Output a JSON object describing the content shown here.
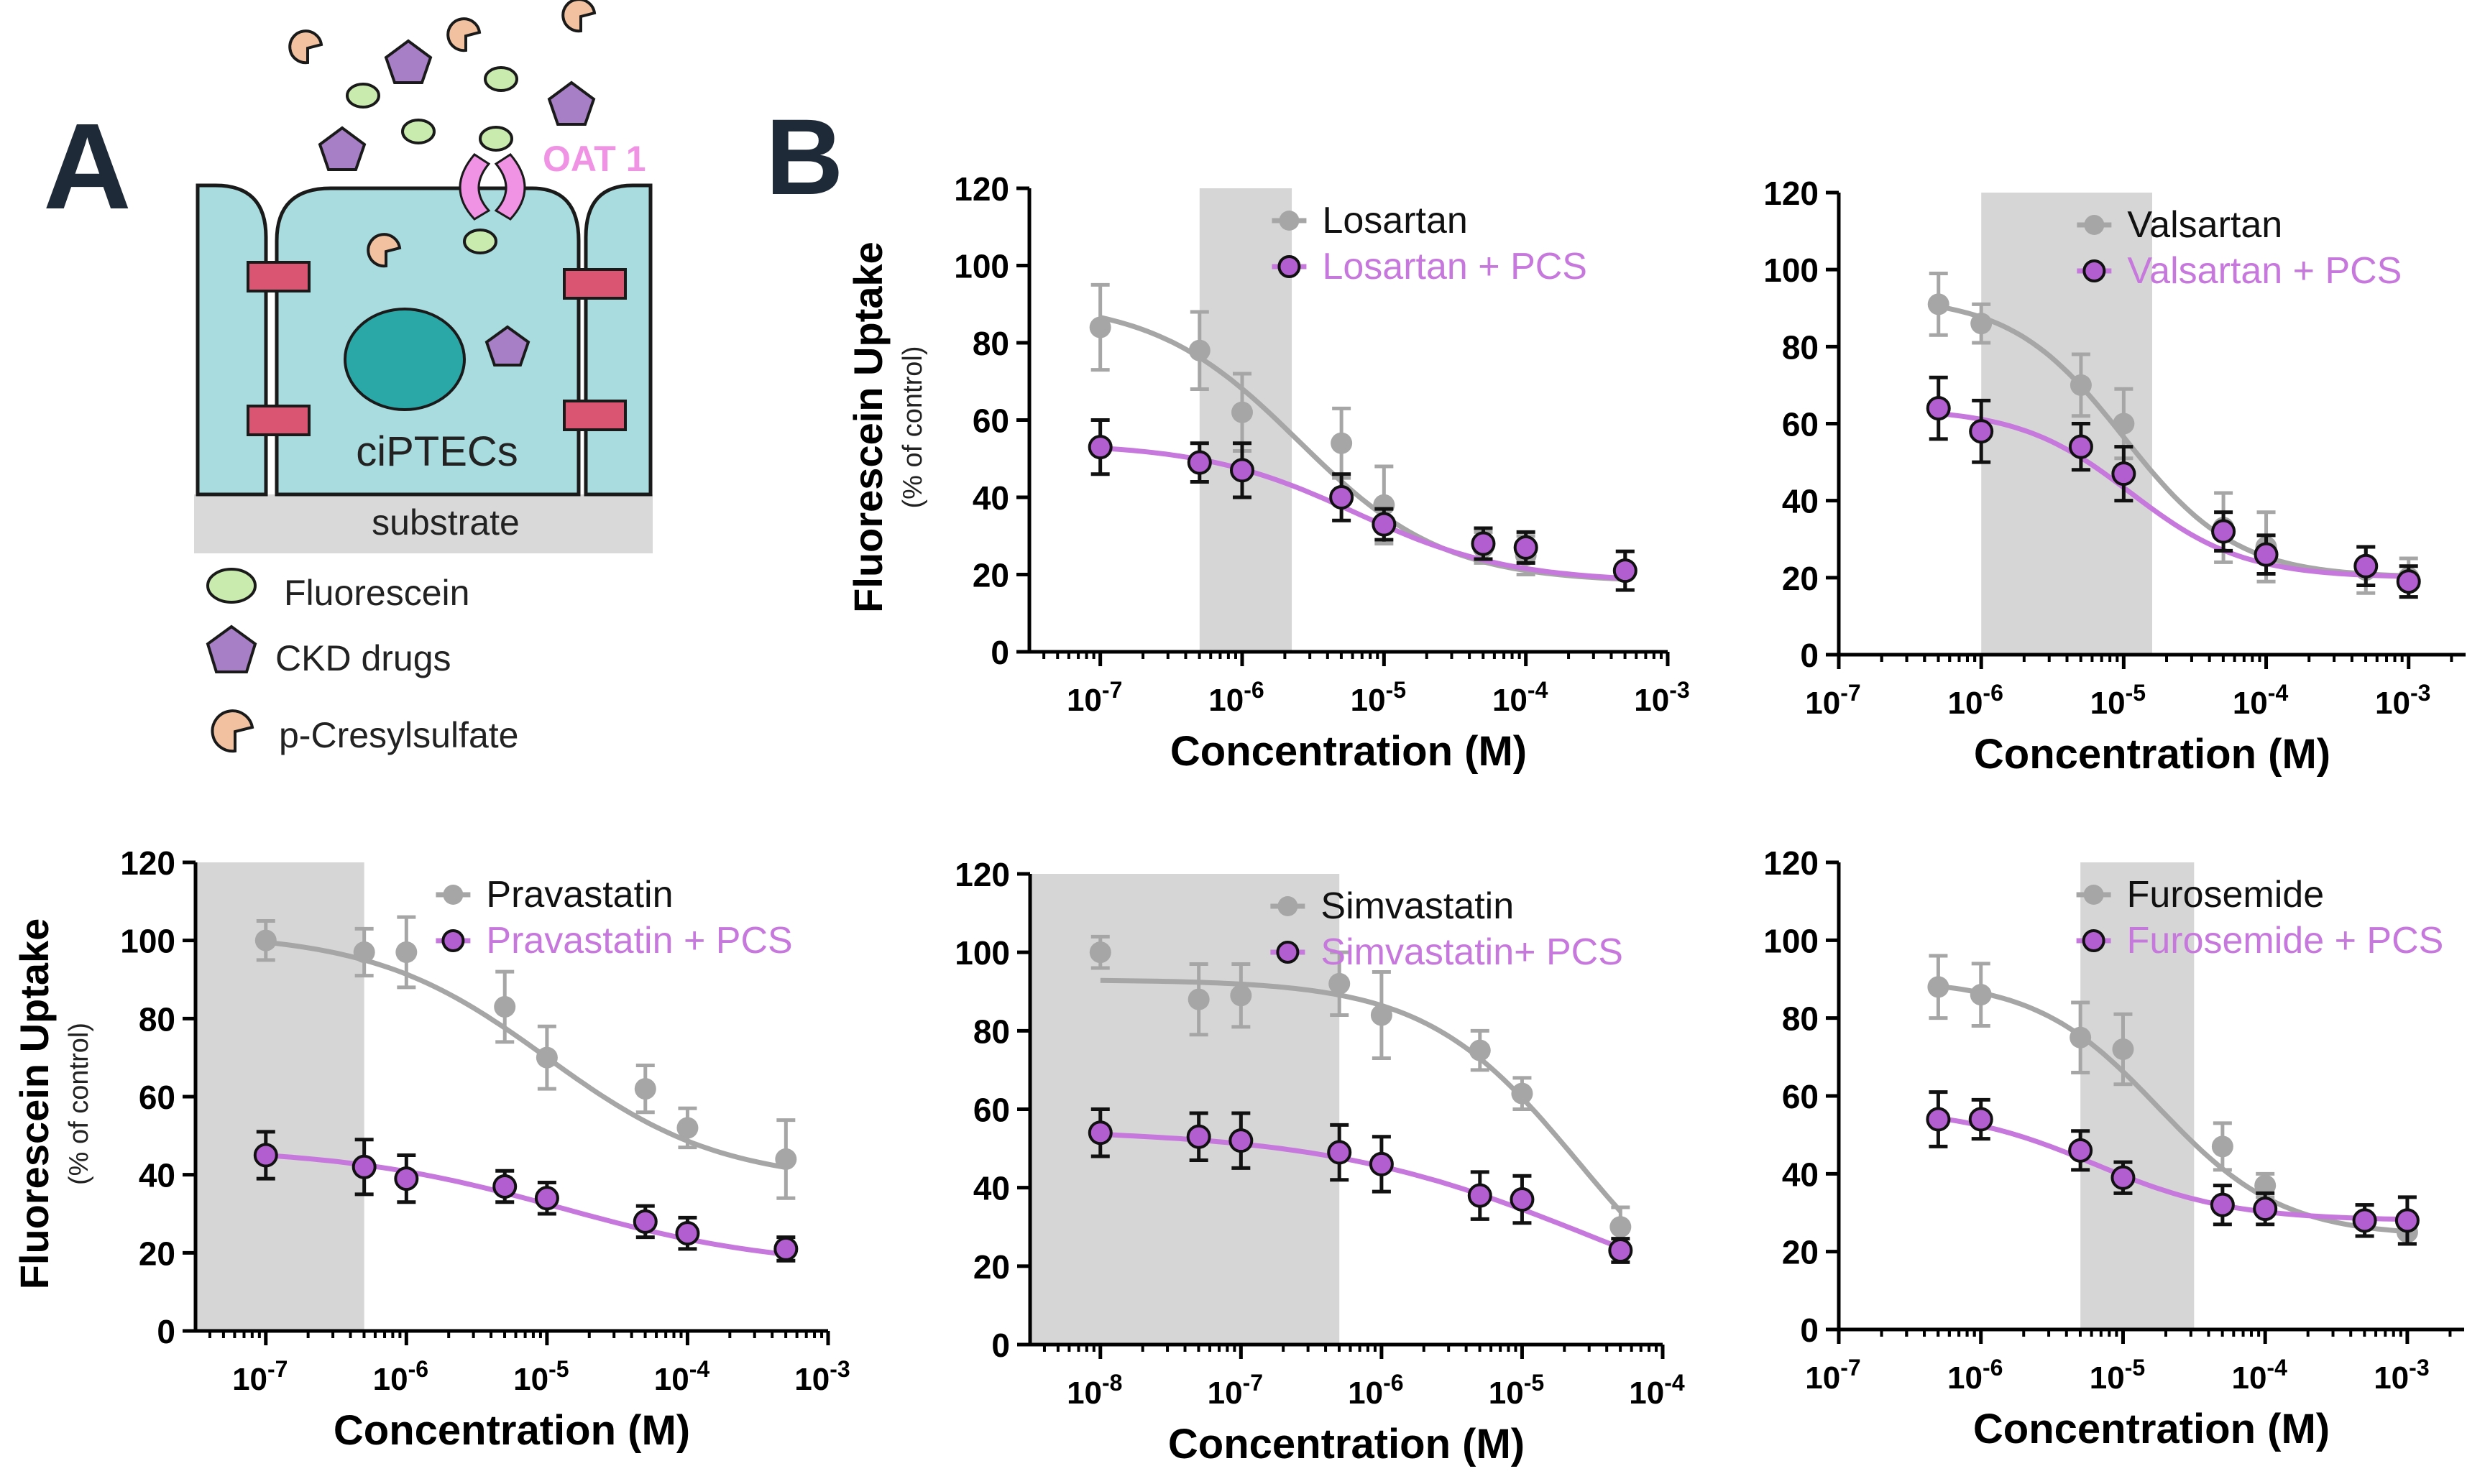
{
  "panel_a": {
    "label": "A",
    "oat_label": "OAT 1",
    "cell_label": "ciPTECs",
    "substrate_label": "substrate",
    "legend": [
      {
        "icon": "fluorescein-icon",
        "label": "Fluorescein"
      },
      {
        "icon": "ckd-drug-icon",
        "label": "CKD drugs"
      },
      {
        "icon": "p-cresylsulfate-icon",
        "label": "p-Cresylsulfate"
      }
    ]
  },
  "panel_b": {
    "label": "B"
  },
  "colors": {
    "gray": "#a6a6a6",
    "purple": "#c778dd",
    "purple_fill": "#b25ed0",
    "shade": "#d6d6d6",
    "cell": "#a9dcdf",
    "nucleus": "#2aa7a7",
    "junction": "#d95571",
    "oat": "#f093e4",
    "fluorescein": "#c9ecae",
    "drug": "#a77fc6",
    "pcs": "#f2c2a0"
  },
  "chart_data": [
    {
      "type": "line",
      "title": "Losartan",
      "xlabel": "Concentration (M)",
      "ylabel": "Fluorescein Uptake",
      "ylabel_sub": "(% of control)",
      "x_scale": "log",
      "xlim_exp": [
        -7.5,
        -3
      ],
      "x_ticks_exp": [
        -7,
        -6,
        -5,
        -4,
        -3
      ],
      "ylim": [
        0,
        120
      ],
      "y_ticks": [
        0,
        20,
        40,
        60,
        80,
        100,
        120
      ],
      "shade_exp": [
        -6.3,
        -5.65
      ],
      "legend": [
        "Losartan",
        "Losartan + PCS"
      ],
      "series": [
        {
          "name": "Losartan",
          "color": "gray",
          "x_exp": [
            -7,
            -6.3,
            -6,
            -5.3,
            -5,
            -4.3,
            -4,
            -3.3
          ],
          "y": [
            84,
            78,
            62,
            54,
            38,
            27,
            25,
            21
          ],
          "err": [
            11,
            10,
            10,
            9,
            10,
            4,
            5,
            5
          ],
          "curve": {
            "top": 91,
            "bottom": 18,
            "logec50": -5.6,
            "hill": 0.85
          }
        },
        {
          "name": "Losartan + PCS",
          "color": "purple",
          "x_exp": [
            -7,
            -6.3,
            -6,
            -5.3,
            -5,
            -4.3,
            -4,
            -3.3
          ],
          "y": [
            53,
            49,
            47,
            40,
            33,
            28,
            27,
            21
          ],
          "err": [
            7,
            5,
            7,
            6,
            4,
            4,
            4,
            5
          ],
          "curve": {
            "top": 54,
            "bottom": 18,
            "logec50": -5.2,
            "hill": 0.8
          }
        }
      ]
    },
    {
      "type": "line",
      "title": "Valsartan",
      "xlabel": "Concentration (M)",
      "ylabel": "",
      "ylabel_sub": "",
      "x_scale": "log",
      "xlim_exp": [
        -7,
        -2.6
      ],
      "x_ticks_exp": [
        -7,
        -6,
        -5,
        -4,
        -3
      ],
      "ylim": [
        0,
        120
      ],
      "y_ticks": [
        0,
        20,
        40,
        60,
        80,
        100,
        120
      ],
      "shade_exp": [
        -6,
        -4.8
      ],
      "legend": [
        "Valsartan",
        "Valsartan + PCS"
      ],
      "series": [
        {
          "name": "Valsartan",
          "color": "gray",
          "x_exp": [
            -6.3,
            -6,
            -5.3,
            -5,
            -4.3,
            -4,
            -3.3,
            -3
          ],
          "y": [
            91,
            86,
            70,
            60,
            33,
            28,
            22,
            20
          ],
          "err": [
            8,
            5,
            8,
            9,
            9,
            9,
            6,
            5
          ],
          "curve": {
            "top": 93,
            "bottom": 20,
            "logec50": -5.0,
            "hill": 1.1
          }
        },
        {
          "name": "Valsartan + PCS",
          "color": "purple",
          "x_exp": [
            -6.3,
            -6,
            -5.3,
            -5,
            -4.3,
            -4,
            -3.3,
            -3
          ],
          "y": [
            64,
            58,
            54,
            47,
            32,
            26,
            23,
            19
          ],
          "err": [
            8,
            8,
            6,
            7,
            5,
            5,
            5,
            4
          ],
          "curve": {
            "top": 64,
            "bottom": 20,
            "logec50": -4.95,
            "hill": 1.1
          }
        }
      ]
    },
    {
      "type": "line",
      "title": "Pravastatin",
      "xlabel": "Concentration (M)",
      "ylabel": "Fluorescein Uptake",
      "ylabel_sub": "(% of control)",
      "x_scale": "log",
      "xlim_exp": [
        -7.5,
        -3
      ],
      "x_ticks_exp": [
        -7,
        -6,
        -5,
        -4,
        -3
      ],
      "ylim": [
        0,
        120
      ],
      "y_ticks": [
        0,
        20,
        40,
        60,
        80,
        100,
        120
      ],
      "shade_exp": [
        -7.5,
        -6.3
      ],
      "legend": [
        "Pravastatin",
        "Pravastatin + PCS"
      ],
      "series": [
        {
          "name": "Pravastatin",
          "color": "gray",
          "x_exp": [
            -7,
            -6.3,
            -6,
            -5.3,
            -5,
            -4.3,
            -4,
            -3.3
          ],
          "y": [
            100,
            97,
            97,
            83,
            70,
            62,
            52,
            44
          ],
          "err": [
            5,
            6,
            9,
            9,
            8,
            6,
            5,
            10
          ],
          "curve": {
            "top": 102,
            "bottom": 38,
            "logec50": -5.0,
            "hill": 0.7
          }
        },
        {
          "name": "Pravastatin + PCS",
          "color": "purple",
          "x_exp": [
            -7,
            -6.3,
            -6,
            -5.3,
            -5,
            -4.3,
            -4,
            -3.3
          ],
          "y": [
            45,
            42,
            39,
            37,
            34,
            28,
            25,
            21
          ],
          "err": [
            6,
            7,
            6,
            4,
            4,
            4,
            4,
            3
          ],
          "curve": {
            "top": 47,
            "bottom": 16,
            "logec50": -4.9,
            "hill": 0.55
          }
        }
      ]
    },
    {
      "type": "line",
      "title": "Simvastatin",
      "xlabel": "Concentration (M)",
      "ylabel": "",
      "ylabel_sub": "",
      "x_scale": "log",
      "xlim_exp": [
        -8.5,
        -4
      ],
      "x_ticks_exp": [
        -8,
        -7,
        -6,
        -5,
        -4
      ],
      "ylim": [
        0,
        120
      ],
      "y_ticks": [
        0,
        20,
        40,
        60,
        80,
        100,
        120
      ],
      "shade_exp": [
        -8.5,
        -6.3
      ],
      "legend": [
        "Simvastatin",
        "Simvastatin+ PCS"
      ],
      "series": [
        {
          "name": "Simvastatin",
          "color": "gray",
          "x_exp": [
            -8,
            -7.3,
            -7,
            -6.3,
            -6,
            -5.3,
            -5,
            -4.3
          ],
          "y": [
            100,
            88,
            89,
            92,
            84,
            75,
            64,
            30
          ],
          "err": [
            4,
            9,
            8,
            8,
            11,
            5,
            4,
            5
          ],
          "curve": {
            "top": 93,
            "bottom": 0,
            "logec50": -4.6,
            "hill": 0.8
          }
        },
        {
          "name": "Simvastatin+ PCS",
          "color": "purple",
          "x_exp": [
            -8,
            -7.3,
            -7,
            -6.3,
            -6,
            -5.3,
            -5,
            -4.3
          ],
          "y": [
            54,
            53,
            52,
            49,
            46,
            38,
            37,
            24
          ],
          "err": [
            6,
            6,
            7,
            7,
            7,
            6,
            6,
            3
          ],
          "curve": {
            "top": 55,
            "bottom": 0,
            "logec50": -4.5,
            "hill": 0.45
          }
        }
      ]
    },
    {
      "type": "line",
      "title": "Furosemide",
      "xlabel": "Concentration (M)",
      "ylabel": "",
      "ylabel_sub": "",
      "x_scale": "log",
      "xlim_exp": [
        -7,
        -2.6
      ],
      "x_ticks_exp": [
        -7,
        -6,
        -5,
        -4,
        -3
      ],
      "ylim": [
        0,
        120
      ],
      "y_ticks": [
        0,
        20,
        40,
        60,
        80,
        100,
        120
      ],
      "shade_exp": [
        -5.3,
        -4.5
      ],
      "legend": [
        "Furosemide",
        "Furosemide + PCS"
      ],
      "series": [
        {
          "name": "Furosemide",
          "color": "gray",
          "x_exp": [
            -6.3,
            -6,
            -5.3,
            -5,
            -4.3,
            -4,
            -3.3,
            -3
          ],
          "y": [
            88,
            86,
            75,
            72,
            47,
            37,
            28,
            25
          ],
          "err": [
            8,
            8,
            9,
            9,
            6,
            3,
            4,
            3
          ],
          "curve": {
            "top": 90,
            "bottom": 24,
            "logec50": -4.75,
            "hill": 1.0
          }
        },
        {
          "name": "Furosemide + PCS",
          "color": "purple",
          "x_exp": [
            -6.3,
            -6,
            -5.3,
            -5,
            -4.3,
            -4,
            -3.3,
            -3
          ],
          "y": [
            54,
            54,
            46,
            39,
            32,
            31,
            28,
            28
          ],
          "err": [
            7,
            5,
            5,
            4,
            5,
            4,
            4,
            6
          ],
          "curve": {
            "top": 57,
            "bottom": 28,
            "logec50": -5.2,
            "hill": 0.9
          }
        }
      ]
    }
  ]
}
